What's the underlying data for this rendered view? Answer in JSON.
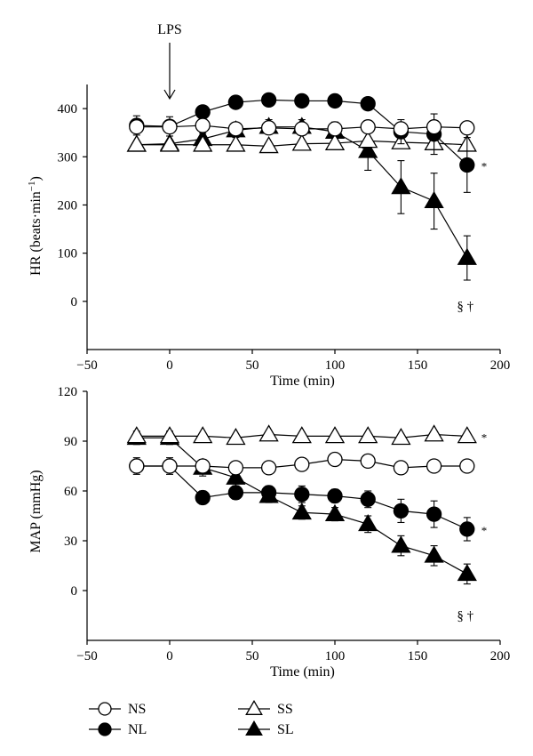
{
  "legend": {
    "items": [
      {
        "label": "NS",
        "marker": "circle",
        "filled": false
      },
      {
        "label": "NL",
        "marker": "circle",
        "filled": true
      },
      {
        "label": "SS",
        "marker": "triangle",
        "filled": false
      },
      {
        "label": "SL",
        "marker": "triangle",
        "filled": true
      }
    ]
  },
  "chart_data": [
    {
      "type": "line",
      "ylabel_main": "HR (beats·min",
      "ylabel_sup": "−1",
      "ylabel_close": ")",
      "xlabel": "Time (min)",
      "xlim": [
        -50,
        200
      ],
      "ylim": [
        -100,
        450
      ],
      "xticks": [
        -50,
        0,
        50,
        100,
        150,
        200
      ],
      "yticks": [
        0,
        100,
        200,
        300,
        400
      ],
      "annotation": {
        "text": "LPS",
        "x": 0
      },
      "footnote": "§ †",
      "series": [
        {
          "name": "NS",
          "marker": "circle",
          "filled": false,
          "x": [
            -20,
            0,
            20,
            40,
            60,
            80,
            100,
            120,
            140,
            160,
            180
          ],
          "y": [
            362,
            362,
            365,
            358,
            360,
            358,
            358,
            362,
            358,
            362,
            360
          ],
          "err": [
            0,
            0,
            0,
            0,
            0,
            0,
            0,
            0,
            0,
            0,
            0
          ]
        },
        {
          "name": "NL",
          "marker": "circle",
          "filled": true,
          "x": [
            -20,
            0,
            20,
            40,
            60,
            80,
            100,
            120,
            140,
            160,
            180
          ],
          "y": [
            365,
            363,
            393,
            413,
            418,
            416,
            416,
            410,
            352,
            347,
            283
          ],
          "err": [
            20,
            20,
            12,
            10,
            10,
            10,
            10,
            12,
            25,
            42,
            57
          ],
          "marker_label": "*"
        },
        {
          "name": "SS",
          "marker": "triangle",
          "filled": false,
          "x": [
            -20,
            0,
            20,
            40,
            60,
            80,
            100,
            120,
            140,
            160,
            180
          ],
          "y": [
            325,
            325,
            325,
            325,
            322,
            327,
            328,
            333,
            330,
            328,
            325
          ],
          "err": [
            0,
            0,
            0,
            0,
            0,
            0,
            0,
            0,
            0,
            0,
            0
          ]
        },
        {
          "name": "SL",
          "marker": "triangle",
          "filled": true,
          "x": [
            -20,
            0,
            20,
            40,
            60,
            80,
            100,
            120,
            140,
            160,
            180
          ],
          "y": [
            325,
            327,
            337,
            355,
            362,
            362,
            352,
            312,
            237,
            208,
            90
          ],
          "err": [
            5,
            5,
            12,
            15,
            15,
            15,
            20,
            40,
            55,
            58,
            46
          ]
        }
      ]
    },
    {
      "type": "line",
      "ylabel_main": "MAP (mmHg)",
      "xlabel": "Time (min)",
      "xlim": [
        -50,
        200
      ],
      "ylim": [
        -30,
        120
      ],
      "xticks": [
        -50,
        0,
        50,
        100,
        150,
        200
      ],
      "yticks": [
        0,
        30,
        60,
        90,
        120
      ],
      "footnote": "§ †",
      "series": [
        {
          "name": "NS",
          "marker": "circle",
          "filled": false,
          "x": [
            -20,
            0,
            20,
            40,
            60,
            80,
            100,
            120,
            140,
            160,
            180
          ],
          "y": [
            75,
            75,
            75,
            74,
            74,
            76,
            79,
            78,
            74,
            75,
            75
          ],
          "err": [
            0,
            0,
            0,
            0,
            0,
            0,
            0,
            0,
            0,
            0,
            0
          ]
        },
        {
          "name": "NL",
          "marker": "circle",
          "filled": true,
          "x": [
            -20,
            0,
            20,
            40,
            60,
            80,
            100,
            120,
            140,
            160,
            180
          ],
          "y": [
            75,
            75,
            56,
            59,
            59,
            58,
            57,
            55,
            48,
            46,
            37
          ],
          "err": [
            5,
            5,
            4,
            4,
            4,
            5,
            4,
            5,
            7,
            8,
            7
          ],
          "marker_label": "*"
        },
        {
          "name": "SS",
          "marker": "triangle",
          "filled": false,
          "x": [
            -20,
            0,
            20,
            40,
            60,
            80,
            100,
            120,
            140,
            160,
            180
          ],
          "y": [
            93,
            93,
            93,
            92,
            94,
            93,
            93,
            93,
            92,
            94,
            93
          ],
          "err": [
            0,
            0,
            0,
            0,
            0,
            0,
            0,
            0,
            0,
            0,
            0
          ],
          "marker_label": "*"
        },
        {
          "name": "SL",
          "marker": "triangle",
          "filled": true,
          "x": [
            -20,
            0,
            20,
            40,
            60,
            80,
            100,
            120,
            140,
            160,
            180
          ],
          "y": [
            92,
            92,
            74,
            68,
            57,
            47,
            46,
            40,
            27,
            21,
            10
          ],
          "err": [
            4,
            4,
            5,
            5,
            4,
            4,
            4,
            5,
            6,
            6,
            6
          ]
        }
      ]
    }
  ]
}
